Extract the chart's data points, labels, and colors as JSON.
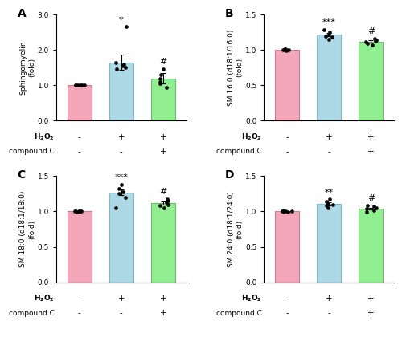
{
  "panels": [
    "A",
    "B",
    "C",
    "D"
  ],
  "bar_colors": [
    "#F4A7B9",
    "#ADD8E6",
    "#90EE90"
  ],
  "bar_edge_colors": [
    "#C97E95",
    "#7EB8CC",
    "#70B870"
  ],
  "x_tick_labels_h2o2": [
    "-",
    "+",
    "+"
  ],
  "x_tick_labels_compC": [
    "-",
    "-",
    "+"
  ],
  "A": {
    "means": [
      1.0,
      1.65,
      1.2
    ],
    "sems": [
      0.02,
      0.22,
      0.15
    ],
    "ylim": [
      0,
      3.0
    ],
    "yticks": [
      0.0,
      1.0,
      2.0,
      3.0
    ],
    "ytick_labels": [
      "0.0",
      "1.0",
      "2.0",
      "3.0"
    ],
    "ylabel": "Sphingomyelin\n(fold)",
    "sig_above": [
      "",
      "*",
      "#"
    ],
    "dots": [
      [
        1.0,
        1.0,
        1.0,
        1.0,
        1.0,
        1.01
      ],
      [
        1.45,
        1.5,
        1.55,
        1.6,
        1.65,
        2.65
      ],
      [
        0.95,
        1.05,
        1.1,
        1.2,
        1.3,
        1.45
      ]
    ]
  },
  "B": {
    "means": [
      1.0,
      1.22,
      1.12
    ],
    "sems": [
      0.01,
      0.025,
      0.018
    ],
    "ylim": [
      0,
      1.5
    ],
    "yticks": [
      0.0,
      0.5,
      1.0,
      1.5
    ],
    "ytick_labels": [
      "0.0",
      "0.5",
      "1.0",
      "1.5"
    ],
    "ylabel": "SM 16:0 (d18:1/16:0)\n(fold)",
    "sig_above": [
      "",
      "***",
      "#"
    ],
    "dots": [
      [
        0.99,
        1.0,
        1.0,
        1.0,
        1.01,
        1.01
      ],
      [
        1.15,
        1.18,
        1.2,
        1.22,
        1.25,
        1.28
      ],
      [
        1.07,
        1.09,
        1.11,
        1.13,
        1.14,
        1.16
      ]
    ]
  },
  "C": {
    "means": [
      1.0,
      1.27,
      1.12
    ],
    "sems": [
      0.01,
      0.04,
      0.025
    ],
    "ylim": [
      0,
      1.5
    ],
    "yticks": [
      0.0,
      0.5,
      1.0,
      1.5
    ],
    "ytick_labels": [
      "0.0",
      "0.5",
      "1.0",
      "1.5"
    ],
    "ylabel": "SM 18:0 (d18:1/18:0)\n(fold)",
    "sig_above": [
      "",
      "***",
      "#"
    ],
    "dots": [
      [
        0.99,
        1.0,
        1.0,
        1.0,
        1.01,
        1.01
      ],
      [
        1.05,
        1.2,
        1.25,
        1.28,
        1.32,
        1.38
      ],
      [
        1.05,
        1.08,
        1.1,
        1.13,
        1.15,
        1.18
      ]
    ]
  },
  "D": {
    "means": [
      1.0,
      1.11,
      1.04
    ],
    "sems": [
      0.01,
      0.02,
      0.015
    ],
    "ylim": [
      0,
      1.5
    ],
    "yticks": [
      0.0,
      0.5,
      1.0,
      1.5
    ],
    "ytick_labels": [
      "0.0",
      "0.5",
      "1.0",
      "1.5"
    ],
    "ylabel": "SM 24:0 (d18:1/24:0)\n(fold)",
    "sig_above": [
      "",
      "**",
      "#"
    ],
    "dots": [
      [
        0.99,
        1.0,
        1.0,
        1.0,
        1.01,
        1.01
      ],
      [
        1.05,
        1.08,
        1.1,
        1.12,
        1.14,
        1.17
      ],
      [
        0.99,
        1.02,
        1.04,
        1.05,
        1.07,
        1.09
      ]
    ]
  },
  "background_color": "#ffffff",
  "panel_label_fontsize": 10,
  "axis_label_fontsize": 6.5,
  "tick_fontsize": 6.5,
  "sig_fontsize": 8,
  "dot_size": 10,
  "bar_width": 0.58,
  "xlim": [
    -0.55,
    2.55
  ]
}
